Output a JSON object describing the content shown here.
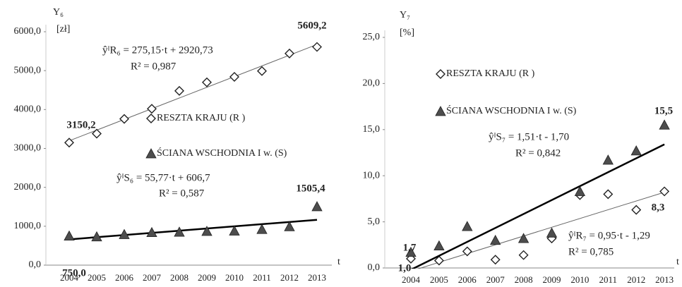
{
  "chart_data": [
    {
      "type": "scatter",
      "y_label": "Y₆",
      "y_unit": "[zł]",
      "x_label": "t",
      "categories": [
        "2004",
        "2005",
        "2006",
        "2007",
        "2008",
        "2009",
        "2010",
        "2011",
        "2012",
        "2013"
      ],
      "ylim": [
        0,
        6000
      ],
      "yticks": [
        {
          "value": 0,
          "label": "0,0"
        },
        {
          "value": 1000,
          "label": "1000,0"
        },
        {
          "value": 2000,
          "label": "2000,0"
        },
        {
          "value": 3000,
          "label": "3000,0"
        },
        {
          "value": 4000,
          "label": "4000,0"
        },
        {
          "value": 5000,
          "label": "5000,0"
        },
        {
          "value": 6000,
          "label": "6000,0"
        }
      ],
      "series": [
        {
          "name": "RESZTA KRAJU (R )",
          "marker": "diamond",
          "color": "#ffffff",
          "trend_color": "#666666",
          "trend_width": 1,
          "values": [
            3150.2,
            3380,
            3760,
            4020,
            4480,
            4700,
            4840,
            4990,
            5440,
            5609.2
          ],
          "value_labels": [
            "3150,2",
            null,
            null,
            null,
            null,
            null,
            null,
            null,
            null,
            "5609,2"
          ],
          "trend": [
            3195.9,
            5672.2
          ],
          "annotations": [
            "ŷᴵR₆ = 275,15·t + 2920,73",
            "R² = 0,987"
          ]
        },
        {
          "name": "ŚCIANA WSCHODNIA I w. (S)",
          "marker": "triangle",
          "color": "#4d4d4d",
          "trend_color": "#000000",
          "trend_width": 2.5,
          "values": [
            750.0,
            730,
            790,
            840,
            850,
            870,
            880,
            920,
            990,
            1505.4
          ],
          "value_labels": [
            "750,0",
            null,
            null,
            null,
            null,
            null,
            null,
            null,
            null,
            "1505,4"
          ],
          "trend": [
            662.5,
            1164.4
          ],
          "annotations": [
            "ŷᴵS₆ = 55,77·t + 606,7",
            "R² = 0,587"
          ]
        }
      ]
    },
    {
      "type": "scatter",
      "y_label": "Y₇",
      "y_unit": "[%]",
      "x_label": "t",
      "categories": [
        "2004",
        "2005",
        "2006",
        "2007",
        "2008",
        "2009",
        "2010",
        "2011",
        "2012",
        "2013"
      ],
      "ylim": [
        0,
        25
      ],
      "yticks": [
        {
          "value": 0,
          "label": "0,0"
        },
        {
          "value": 5,
          "label": "5,0"
        },
        {
          "value": 10,
          "label": "10,0"
        },
        {
          "value": 15,
          "label": "15,0"
        },
        {
          "value": 20,
          "label": "20,0"
        },
        {
          "value": 25,
          "label": "25,0"
        }
      ],
      "series": [
        {
          "name": "RESZTA KRAJU (R )",
          "marker": "diamond",
          "color": "#ffffff",
          "trend_color": "#666666",
          "trend_width": 1,
          "values": [
            1.0,
            0.8,
            1.8,
            0.9,
            1.4,
            3.2,
            7.9,
            8.0,
            6.3,
            8.3
          ],
          "value_labels": [
            "1,0",
            null,
            null,
            null,
            null,
            null,
            null,
            null,
            null,
            "8,3"
          ],
          "trend": [
            -0.34,
            8.21
          ],
          "annotations": [
            "ŷᴵR₇ = 0,95·t - 1,29",
            "R² = 0,785"
          ]
        },
        {
          "name": "ŚCIANA WSCHODNIA I w. (S)",
          "marker": "triangle",
          "color": "#4d4d4d",
          "trend_color": "#000000",
          "trend_width": 2.5,
          "values": [
            1.7,
            2.4,
            4.5,
            3.0,
            3.2,
            3.8,
            8.3,
            11.7,
            12.7,
            15.5
          ],
          "value_labels": [
            "1,7",
            null,
            null,
            null,
            null,
            null,
            null,
            null,
            null,
            "15,5"
          ],
          "trend": [
            -0.19,
            13.4
          ],
          "annotations": [
            "ŷᴵS₇ = 1,51·t - 1,70",
            "R² = 0,842"
          ]
        }
      ]
    }
  ]
}
